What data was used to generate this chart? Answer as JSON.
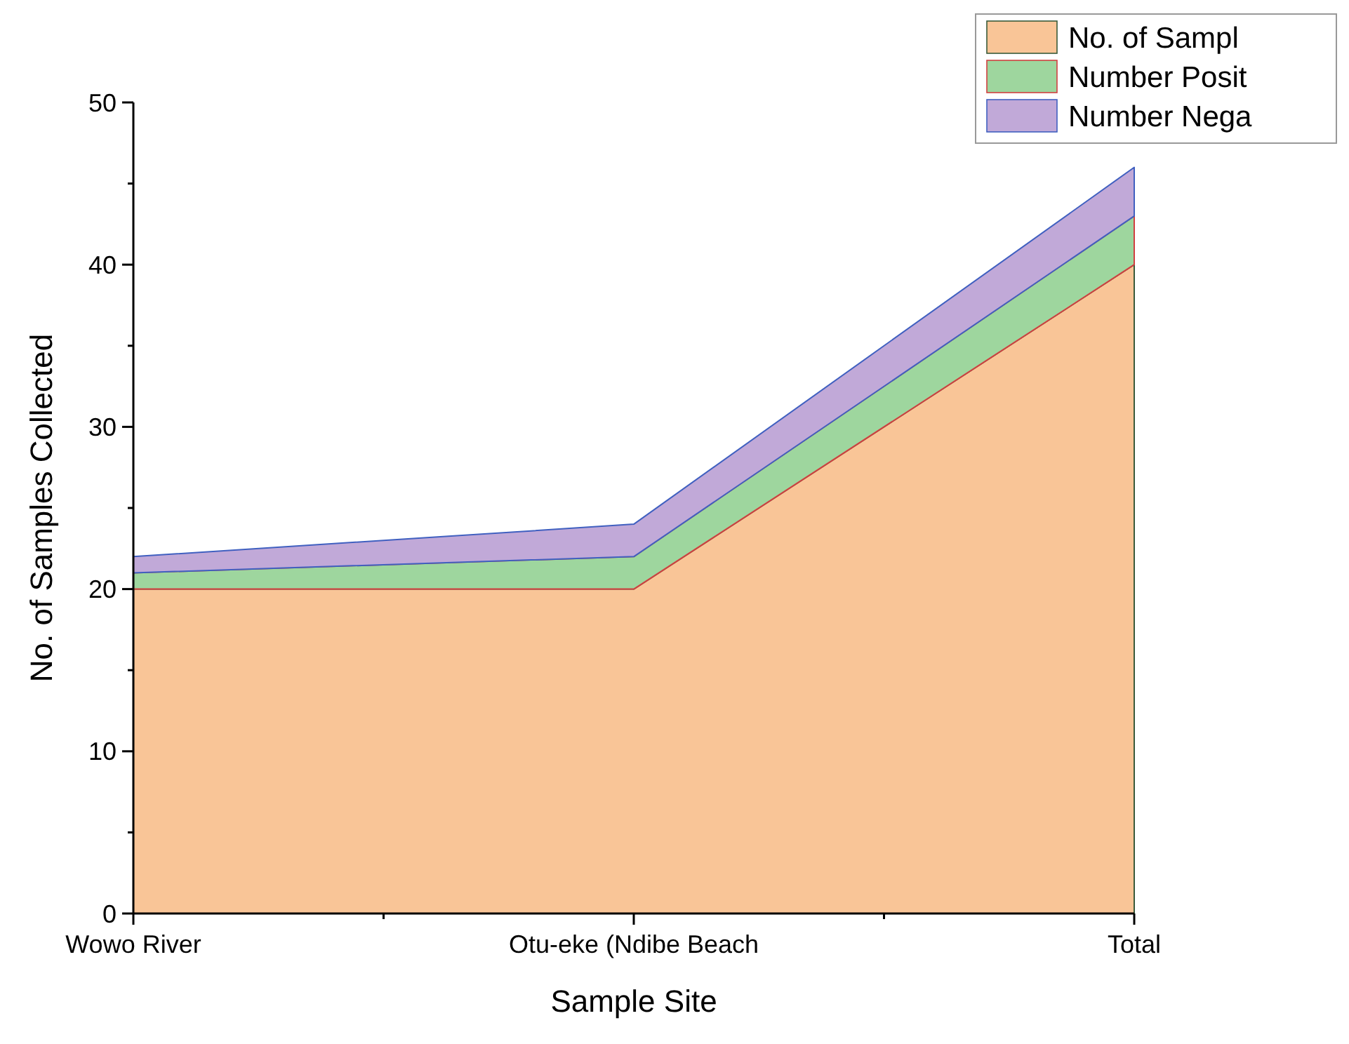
{
  "chart_data": {
    "type": "area",
    "stacked": true,
    "xlabel": "Sample Site",
    "ylabel": "No. of Samples Collected",
    "categories": [
      "Wowo River",
      "Otu-eke (Ndibe Beach",
      "Total"
    ],
    "series": [
      {
        "name": "No. of Sampl",
        "color": "#f9c597",
        "values": [
          20,
          20,
          40
        ]
      },
      {
        "name": "Number Posit",
        "color": "#9ed69e",
        "values": [
          1,
          2,
          3
        ]
      },
      {
        "name": "Number Nega",
        "color": "#c1a9d8",
        "values": [
          1,
          2,
          3
        ]
      }
    ],
    "ylim": [
      0,
      50
    ],
    "yticks": [
      0,
      10,
      20,
      30,
      40,
      50
    ],
    "legend": "top right",
    "grid": false
  }
}
